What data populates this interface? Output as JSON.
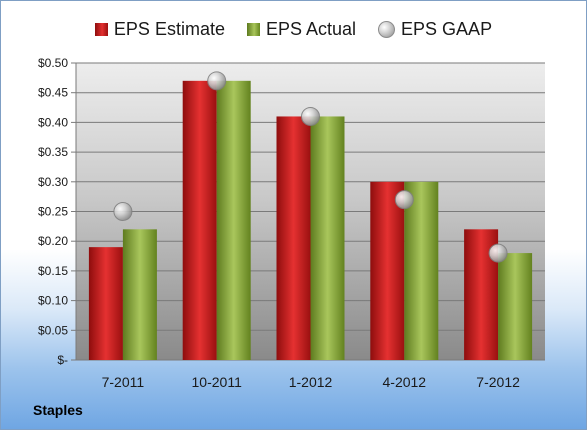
{
  "company": "Staples",
  "legend": {
    "estimate": "EPS Estimate",
    "actual": "EPS Actual",
    "gaap": "EPS GAAP"
  },
  "colors": {
    "estimate": "#c81e1e",
    "actual": "#8fb03a",
    "gaap": "#b8b8b8",
    "plot_background_top": "#d9d9d9",
    "plot_background_bottom": "#8a8a8a",
    "page_background_bottom": "#6fa6e3"
  },
  "chart_data": {
    "type": "bar",
    "categories": [
      "7-2011",
      "10-2011",
      "1-2012",
      "4-2012",
      "7-2012"
    ],
    "series": [
      {
        "name": "EPS Estimate",
        "values": [
          0.19,
          0.47,
          0.41,
          0.3,
          0.22
        ]
      },
      {
        "name": "EPS Actual",
        "values": [
          0.22,
          0.47,
          0.41,
          0.3,
          0.18
        ]
      },
      {
        "name": "EPS GAAP",
        "values": [
          0.25,
          0.47,
          0.41,
          0.27,
          0.18
        ],
        "marker": "circle"
      }
    ],
    "ylim": [
      0,
      0.5
    ],
    "yticks": [
      0,
      0.05,
      0.1,
      0.15,
      0.2,
      0.25,
      0.3,
      0.35,
      0.4,
      0.45,
      0.5
    ],
    "ytick_labels": [
      "$-",
      "$0.05",
      "$0.10",
      "$0.15",
      "$0.20",
      "$0.25",
      "$0.30",
      "$0.35",
      "$0.40",
      "$0.45",
      "$0.50"
    ],
    "grid": true,
    "legend_position": "top"
  }
}
